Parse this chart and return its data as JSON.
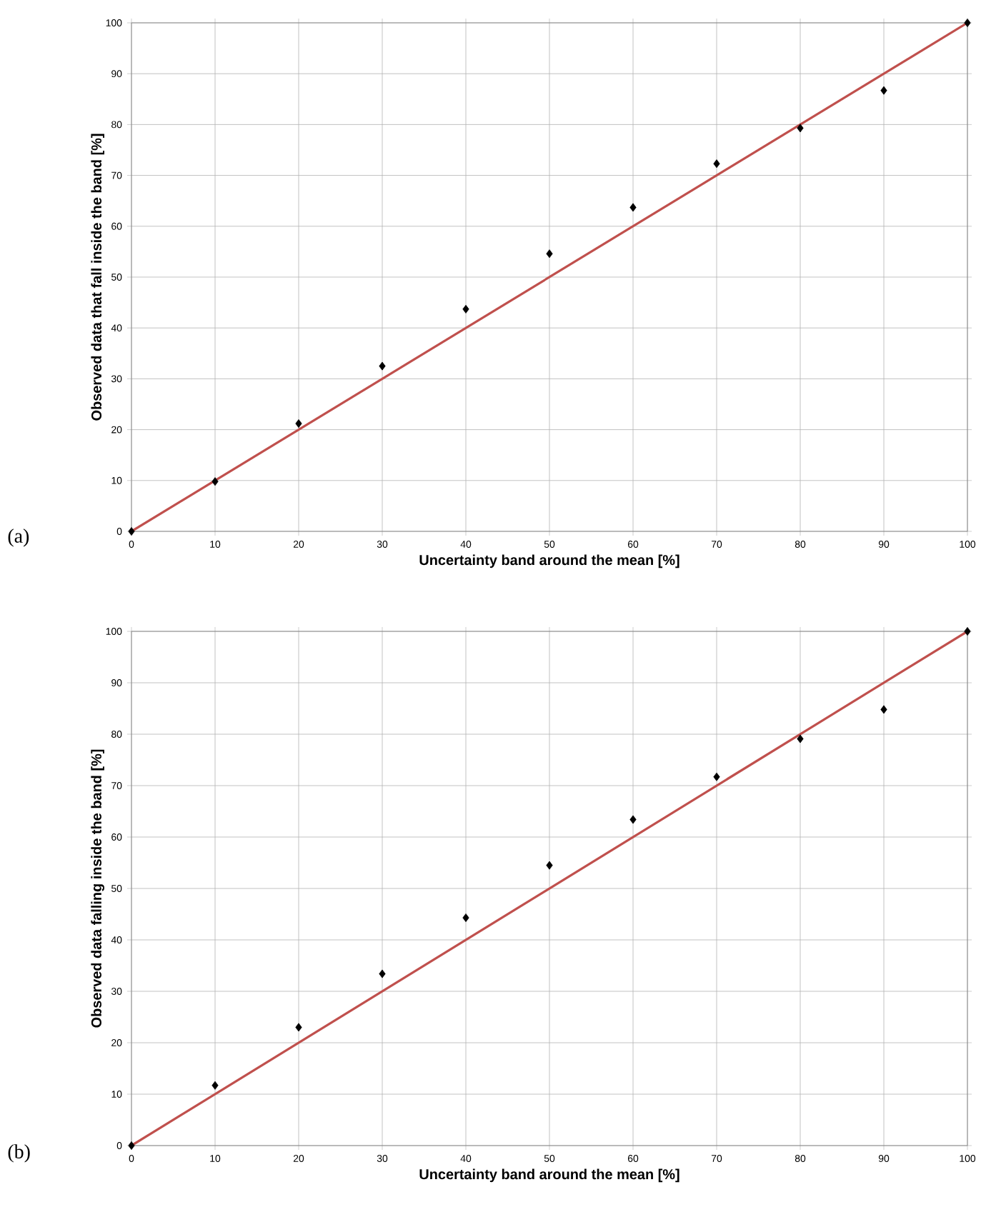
{
  "chart_data": [
    {
      "type": "scatter",
      "xlabel": "Uncertainty band around the mean [%]",
      "ylabel": "Observed data that fall inside the band [%]",
      "annotations": [
        "(a)"
      ],
      "xlim": [
        0,
        100
      ],
      "ylim": [
        0,
        100
      ],
      "xticks": [
        0,
        10,
        20,
        30,
        40,
        50,
        60,
        70,
        80,
        90,
        100
      ],
      "yticks": [
        0,
        10,
        20,
        30,
        40,
        50,
        60,
        70,
        80,
        90,
        100
      ],
      "grid": true,
      "series": [
        {
          "type": "scatter",
          "color": "#000000",
          "marker": "diamond",
          "x": [
            0,
            10,
            20,
            30,
            40,
            50,
            60,
            70,
            80,
            90,
            100
          ],
          "values": [
            0,
            9.8,
            21.2,
            32.5,
            43.7,
            54.6,
            63.7,
            72.3,
            79.3,
            86.7,
            100
          ]
        },
        {
          "type": "line",
          "color": "#c0504d",
          "marker": "none",
          "x": [
            0,
            100
          ],
          "values": [
            0,
            100
          ]
        }
      ]
    },
    {
      "type": "scatter",
      "xlabel": "Uncertainty band around the mean [%]",
      "ylabel": "Observed data falling inside the band [%]",
      "annotations": [
        "(b)"
      ],
      "xlim": [
        0,
        100
      ],
      "ylim": [
        0,
        100
      ],
      "xticks": [
        0,
        10,
        20,
        30,
        40,
        50,
        60,
        70,
        80,
        90,
        100
      ],
      "yticks": [
        0,
        10,
        20,
        30,
        40,
        50,
        60,
        70,
        80,
        90,
        100
      ],
      "grid": true,
      "series": [
        {
          "type": "scatter",
          "color": "#000000",
          "marker": "diamond",
          "x": [
            0,
            10,
            20,
            30,
            40,
            50,
            60,
            70,
            80,
            90,
            100
          ],
          "values": [
            0,
            11.7,
            23.0,
            33.4,
            44.3,
            54.5,
            63.4,
            71.7,
            79.1,
            84.8,
            100
          ]
        },
        {
          "type": "line",
          "color": "#c0504d",
          "marker": "none",
          "x": [
            0,
            100
          ],
          "values": [
            0,
            100
          ]
        }
      ]
    }
  ]
}
